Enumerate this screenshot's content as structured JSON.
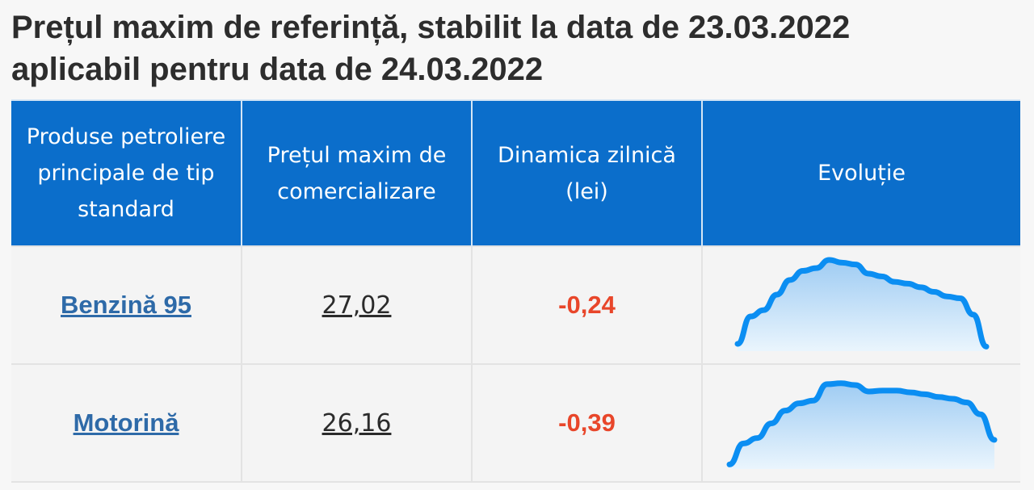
{
  "title": {
    "line1": "Prețul maxim de referință, stabilit la data de 23.03.2022",
    "line2": "aplicabil pentru data de 24.03.2022"
  },
  "table": {
    "headers": {
      "product": "Produse petroliere principale de tip standard",
      "price": "Prețul maxim de comercializare",
      "change": "Dinamica zilnică (lei)",
      "evolution": "Evoluție"
    },
    "rows": [
      {
        "product": "Benzină 95",
        "price": "27,02",
        "change": "-0,24",
        "trend": [
          0.08,
          0.38,
          0.45,
          0.62,
          0.78,
          0.88,
          0.91,
          1.0,
          0.97,
          0.95,
          0.85,
          0.82,
          0.76,
          0.74,
          0.7,
          0.65,
          0.6,
          0.58,
          0.4,
          0.05
        ]
      },
      {
        "product": "Motorină",
        "price": "26,16",
        "change": "-0,39",
        "trend": [
          0.05,
          0.28,
          0.34,
          0.5,
          0.64,
          0.72,
          0.75,
          0.93,
          0.94,
          0.92,
          0.85,
          0.86,
          0.86,
          0.84,
          0.82,
          0.79,
          0.77,
          0.73,
          0.6,
          0.32
        ]
      }
    ]
  },
  "colors": {
    "header_bg": "#0b6ecb",
    "line": "#0b8ef2",
    "fill_top": "#9fccf3",
    "fill_bottom": "#eaf5fd",
    "negative": "#e8462a",
    "link": "#2e6aa8"
  }
}
